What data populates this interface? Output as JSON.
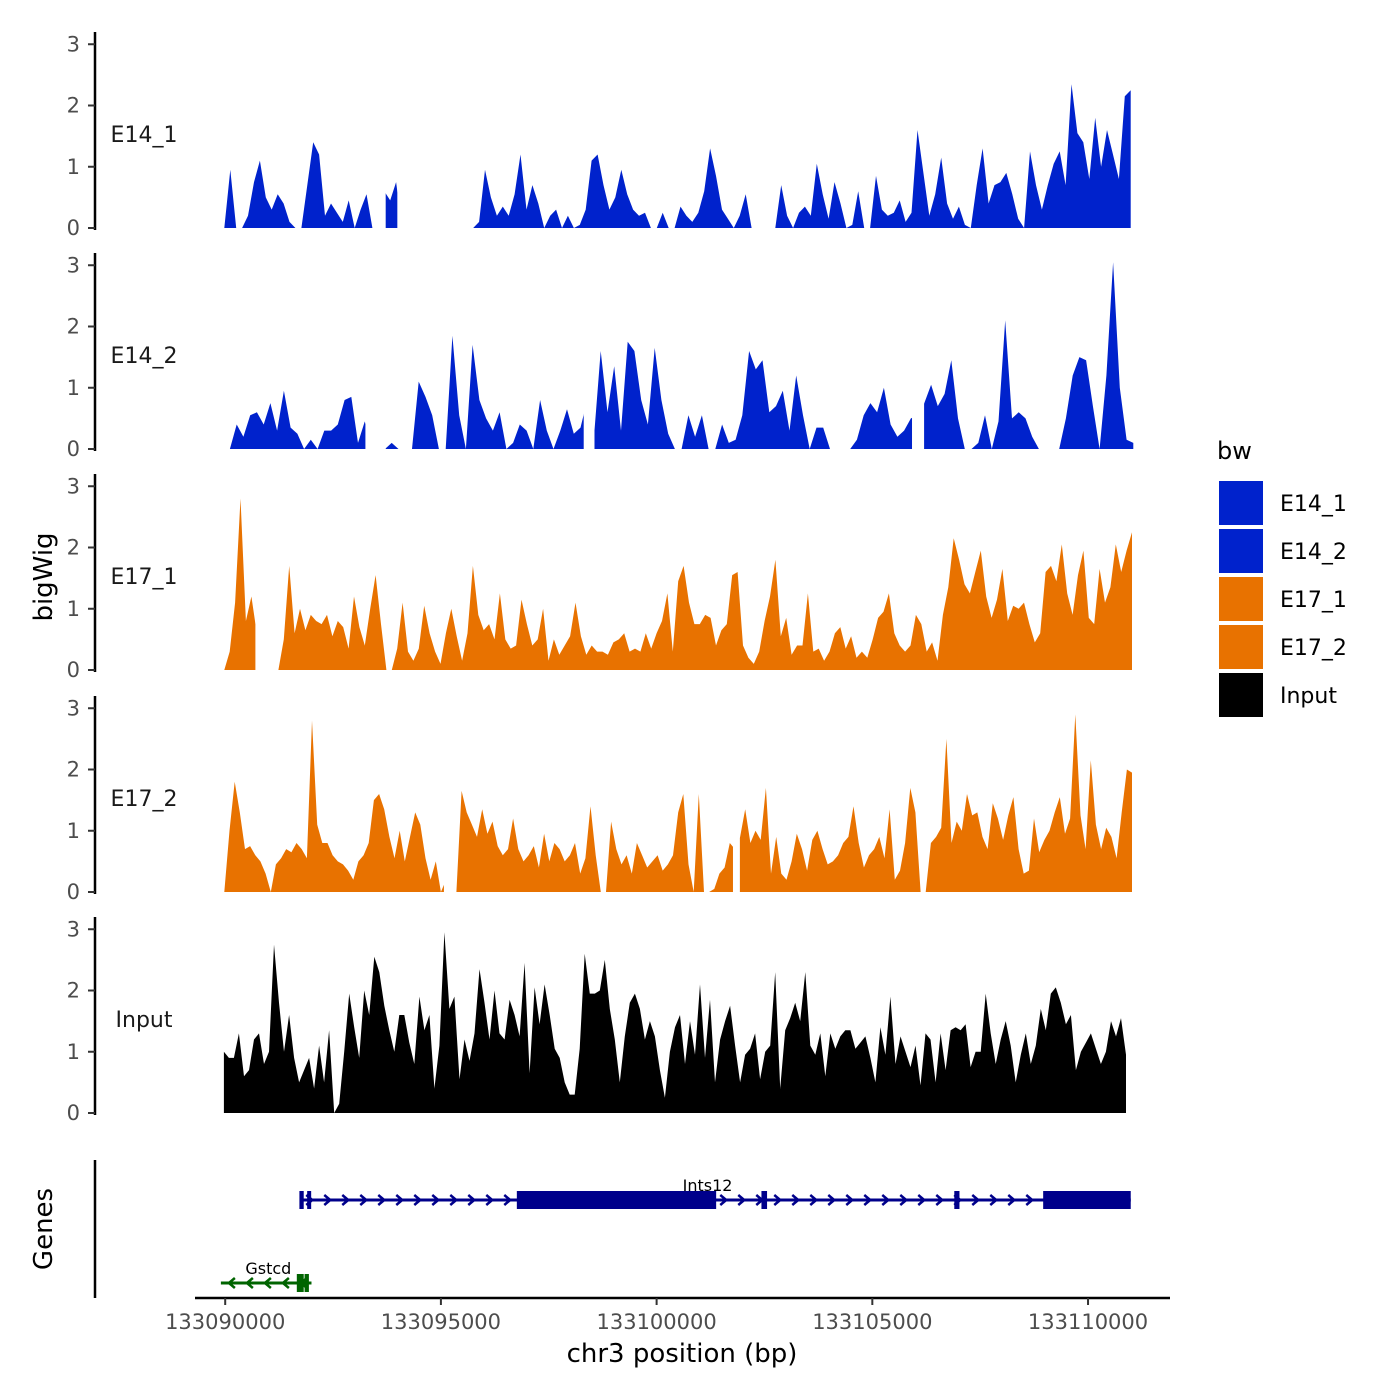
{
  "chart_data": {
    "type": "area",
    "title": "",
    "xlabel": "chr3 position (bp)",
    "ylabel": "bigWig",
    "genes_label": "Genes",
    "xlim": [
      133089300,
      133111900
    ],
    "ylim": [
      0,
      3.2
    ],
    "x_ticks": [
      133090000,
      133095000,
      133100000,
      133105000,
      133110000
    ],
    "x_tick_labels": [
      "133090000",
      "133095000",
      "133100000",
      "133105000",
      "133110000"
    ],
    "y_ticks": [
      0,
      1,
      2,
      3
    ],
    "y_tick_labels": [
      "0",
      "1",
      "2",
      "3"
    ],
    "legend": {
      "title": "bw",
      "position": "right",
      "entries": [
        {
          "label": "E14_1",
          "color": "#0022CC"
        },
        {
          "label": "E14_2",
          "color": "#0022CC"
        },
        {
          "label": "E17_1",
          "color": "#E87200"
        },
        {
          "label": "E17_2",
          "color": "#E87200"
        },
        {
          "label": "Input",
          "color": "#000000"
        }
      ]
    },
    "series": [
      {
        "name": "E14_1",
        "color": "#0022CC",
        "values": [
          0.0,
          0.95,
          0.0,
          0.0,
          0.2,
          0.75,
          1.1,
          0.5,
          0.3,
          0.55,
          0.4,
          0.1,
          0.0,
          0.0,
          0.7,
          1.4,
          1.2,
          0.2,
          0.4,
          0.25,
          0.1,
          0.45,
          0.0,
          0.3,
          0.55,
          0.0,
          0.0,
          0.6,
          0.45,
          0.75,
          0.0,
          0.0,
          0.0,
          0.0,
          0.2,
          0.5,
          0.0,
          0.0,
          0.0,
          0.0,
          0.0,
          0.0,
          0.0,
          0.1,
          0.95,
          0.5,
          0.2,
          0.35,
          0.2,
          0.55,
          1.2,
          0.3,
          0.7,
          0.4,
          0.0,
          0.2,
          0.3,
          0.0,
          0.2,
          0.0,
          0.05,
          0.3,
          1.1,
          1.2,
          0.7,
          0.3,
          0.5,
          0.95,
          0.55,
          0.3,
          0.2,
          0.25,
          0.0,
          0.0,
          0.25,
          0.0,
          0.0,
          0.35,
          0.2,
          0.1,
          0.25,
          0.6,
          1.3,
          0.85,
          0.3,
          0.15,
          0.0,
          0.2,
          0.55,
          0.0,
          0.0,
          0.0,
          0.0,
          0.0,
          0.7,
          0.2,
          0.0,
          0.25,
          0.35,
          0.2,
          1.05,
          0.55,
          0.15,
          0.75,
          0.4,
          0.0,
          0.05,
          0.6,
          0.0,
          0.0,
          0.85,
          0.3,
          0.2,
          0.25,
          0.45,
          0.1,
          0.25,
          1.6,
          0.9,
          0.2,
          0.55,
          1.15,
          0.4,
          0.15,
          0.35,
          0.05,
          0.0,
          0.7,
          1.3,
          0.4,
          0.7,
          0.75,
          0.9,
          0.55,
          0.15,
          0.0,
          1.25,
          0.7,
          0.3,
          0.7,
          1.05,
          1.25,
          0.7,
          2.35,
          1.55,
          1.4,
          0.8,
          1.8,
          1.0,
          1.6,
          1.2,
          0.8,
          2.15,
          2.25
        ]
      },
      {
        "name": "E14_2",
        "color": "#0022CC",
        "values": [
          0.0,
          0.4,
          0.2,
          0.55,
          0.6,
          0.4,
          0.75,
          0.3,
          0.95,
          0.35,
          0.25,
          0.0,
          0.15,
          0.0,
          0.3,
          0.3,
          0.4,
          0.8,
          0.85,
          0.1,
          0.45,
          0.0,
          0.3,
          0.0,
          0.1,
          0.0,
          0.0,
          0.0,
          1.1,
          0.85,
          0.55,
          0.0,
          0.0,
          1.85,
          0.55,
          0.0,
          1.7,
          0.8,
          0.5,
          0.3,
          0.6,
          0.0,
          0.1,
          0.4,
          0.3,
          0.0,
          0.8,
          0.3,
          0.0,
          0.3,
          0.65,
          0.25,
          0.35,
          0.8,
          0.2,
          1.6,
          0.6,
          1.35,
          0.3,
          1.75,
          1.6,
          0.8,
          0.4,
          1.65,
          0.8,
          0.25,
          0.0,
          0.0,
          0.55,
          0.2,
          0.55,
          0.0,
          0.0,
          0.4,
          0.1,
          0.15,
          0.55,
          1.6,
          1.3,
          1.45,
          0.6,
          0.7,
          0.95,
          0.3,
          1.2,
          0.55,
          0.0,
          0.35,
          0.35,
          0.0,
          0.0,
          0.0,
          0.0,
          0.15,
          0.55,
          0.75,
          0.6,
          1.0,
          0.4,
          0.2,
          0.3,
          0.5,
          0.55,
          0.75,
          1.05,
          0.7,
          0.9,
          1.45,
          0.5,
          0.0,
          0.0,
          0.1,
          0.55,
          0.0,
          0.45,
          2.1,
          0.5,
          0.6,
          0.5,
          0.2,
          0.0,
          0.0,
          0.0,
          0.0,
          0.5,
          1.2,
          1.5,
          1.45,
          0.7,
          0.0,
          1.2,
          3.05,
          1.0,
          0.15,
          0.1
        ]
      },
      {
        "name": "E17_1",
        "color": "#E87200",
        "values": [
          0.0,
          0.3,
          1.1,
          2.8,
          0.8,
          1.2,
          0.6,
          0.0,
          0.0,
          0.0,
          0.0,
          0.5,
          1.7,
          0.6,
          1.0,
          0.65,
          0.9,
          0.8,
          0.75,
          0.9,
          0.55,
          0.8,
          0.7,
          0.35,
          1.2,
          0.7,
          0.4,
          1.0,
          1.55,
          0.75,
          0.0,
          0.0,
          0.35,
          1.1,
          0.3,
          0.15,
          0.35,
          1.05,
          0.6,
          0.3,
          0.1,
          0.6,
          1.0,
          0.55,
          0.15,
          0.6,
          1.7,
          0.9,
          0.65,
          0.75,
          0.5,
          1.25,
          0.5,
          0.35,
          0.4,
          1.15,
          0.75,
          0.4,
          0.5,
          1.0,
          0.15,
          0.5,
          0.25,
          0.4,
          0.55,
          1.1,
          0.55,
          0.25,
          0.4,
          0.3,
          0.3,
          0.25,
          0.45,
          0.5,
          0.6,
          0.3,
          0.35,
          0.3,
          0.6,
          0.35,
          0.6,
          0.8,
          1.25,
          0.3,
          1.45,
          1.7,
          1.1,
          0.75,
          0.75,
          0.9,
          0.85,
          0.4,
          0.65,
          0.75,
          1.55,
          1.6,
          0.4,
          0.2,
          0.1,
          0.3,
          0.8,
          1.2,
          1.8,
          0.55,
          0.85,
          0.25,
          0.4,
          0.4,
          1.25,
          0.3,
          0.35,
          0.15,
          0.3,
          0.6,
          0.7,
          0.35,
          0.55,
          0.2,
          0.3,
          0.2,
          0.5,
          0.85,
          0.95,
          1.25,
          0.6,
          0.4,
          0.3,
          0.4,
          0.9,
          0.75,
          0.3,
          0.45,
          0.15,
          0.9,
          1.35,
          2.15,
          1.8,
          1.4,
          1.25,
          1.6,
          1.95,
          1.2,
          0.85,
          1.15,
          1.65,
          0.8,
          1.05,
          1.0,
          1.1,
          0.75,
          0.45,
          0.6,
          1.6,
          1.7,
          1.45,
          2.05,
          1.25,
          0.9,
          1.55,
          1.95,
          0.85,
          0.75,
          1.65,
          1.1,
          1.35,
          2.05,
          1.6,
          1.95,
          2.25
        ]
      },
      {
        "name": "E17_2",
        "color": "#E87200",
        "values": [
          0.0,
          1.0,
          1.8,
          1.3,
          0.7,
          0.75,
          0.6,
          0.5,
          0.3,
          0.0,
          0.45,
          0.55,
          0.7,
          0.65,
          0.8,
          0.7,
          0.55,
          2.8,
          1.1,
          0.8,
          0.8,
          0.6,
          0.5,
          0.45,
          0.35,
          0.2,
          0.5,
          0.6,
          0.8,
          1.5,
          1.6,
          1.35,
          0.9,
          0.55,
          1.0,
          0.5,
          0.9,
          1.3,
          1.1,
          0.55,
          0.2,
          0.5,
          0.0,
          0.2,
          0.0,
          0.0,
          1.65,
          1.3,
          1.1,
          0.9,
          1.35,
          0.95,
          1.15,
          0.75,
          0.6,
          0.7,
          1.2,
          0.7,
          0.5,
          0.6,
          0.75,
          0.4,
          0.95,
          0.5,
          0.8,
          0.7,
          0.5,
          0.6,
          0.8,
          0.3,
          0.55,
          1.4,
          0.6,
          0.0,
          0.0,
          1.15,
          0.7,
          0.45,
          0.6,
          0.3,
          0.8,
          0.6,
          0.4,
          0.5,
          0.6,
          0.35,
          0.45,
          0.6,
          1.3,
          1.6,
          0.45,
          0.0,
          1.6,
          0.0,
          0.0,
          0.05,
          0.3,
          0.4,
          0.8,
          0.7,
          0.9,
          1.35,
          0.8,
          1.0,
          0.85,
          1.7,
          0.3,
          0.9,
          0.3,
          0.2,
          0.5,
          0.95,
          0.7,
          0.35,
          0.85,
          1.0,
          0.7,
          0.45,
          0.5,
          0.6,
          0.8,
          0.9,
          1.4,
          0.8,
          0.4,
          0.6,
          0.7,
          0.9,
          0.55,
          1.35,
          0.2,
          0.35,
          0.8,
          1.7,
          1.3,
          0.0,
          0.0,
          0.8,
          0.9,
          1.05,
          2.5,
          0.8,
          1.15,
          1.0,
          1.6,
          1.25,
          1.3,
          0.9,
          0.7,
          1.45,
          1.2,
          0.85,
          1.25,
          1.55,
          0.7,
          0.3,
          0.35,
          1.2,
          0.65,
          0.85,
          1.0,
          1.3,
          1.55,
          0.95,
          1.2,
          2.9,
          1.25,
          0.7,
          2.15,
          1.1,
          0.7,
          1.05,
          0.9,
          0.55,
          1.3,
          2.0,
          1.95
        ]
      },
      {
        "name": "Input",
        "color": "#000000",
        "values": [
          1.0,
          0.9,
          0.9,
          1.3,
          0.6,
          0.7,
          1.2,
          1.3,
          0.8,
          1.0,
          2.75,
          1.8,
          1.0,
          1.6,
          0.9,
          0.5,
          0.7,
          0.9,
          0.4,
          1.1,
          0.5,
          1.35,
          0.0,
          0.15,
          1.0,
          1.95,
          1.4,
          0.9,
          2.0,
          1.6,
          2.55,
          2.3,
          1.75,
          1.35,
          1.0,
          1.6,
          1.6,
          1.15,
          0.8,
          1.9,
          1.35,
          1.6,
          0.4,
          1.1,
          2.95,
          1.7,
          1.9,
          0.55,
          1.2,
          0.85,
          1.3,
          2.35,
          1.8,
          1.2,
          2.0,
          1.3,
          1.2,
          1.85,
          1.6,
          1.25,
          2.45,
          0.65,
          2.05,
          1.45,
          2.1,
          1.6,
          1.05,
          0.9,
          0.5,
          0.3,
          0.3,
          1.05,
          2.6,
          1.95,
          1.95,
          2.0,
          2.5,
          1.7,
          1.2,
          0.5,
          1.25,
          1.8,
          1.95,
          1.7,
          1.2,
          1.5,
          1.25,
          0.7,
          0.25,
          1.0,
          1.4,
          1.6,
          0.8,
          1.5,
          0.95,
          2.1,
          0.9,
          1.85,
          0.5,
          1.2,
          1.5,
          1.75,
          1.1,
          0.5,
          0.95,
          1.05,
          1.3,
          0.55,
          1.0,
          1.1,
          2.3,
          0.4,
          1.35,
          1.55,
          1.8,
          1.5,
          2.3,
          1.1,
          0.95,
          1.3,
          0.6,
          1.3,
          1.05,
          1.25,
          1.35,
          1.35,
          1.05,
          1.15,
          1.25,
          0.9,
          0.5,
          1.4,
          0.95,
          1.9,
          0.8,
          1.25,
          1.0,
          0.75,
          1.1,
          0.45,
          1.3,
          1.2,
          0.5,
          1.3,
          0.7,
          1.35,
          1.4,
          1.35,
          1.45,
          0.75,
          1.0,
          1.0,
          1.95,
          1.3,
          0.8,
          1.2,
          1.5,
          1.1,
          0.5,
          0.95,
          1.3,
          0.8,
          1.1,
          1.7,
          1.35,
          1.95,
          2.05,
          1.8,
          1.45,
          1.6,
          0.7,
          1.0,
          1.15,
          1.3,
          1.05,
          0.8,
          1.0,
          1.5,
          1.25,
          1.55,
          0.95
        ]
      }
    ],
    "series_x_ranges": [
      [
        133089980,
        133110990
      ],
      [
        133090110,
        133111050
      ],
      [
        133089980,
        133111020
      ],
      [
        133089980,
        133111020
      ],
      [
        133089970,
        133110880
      ]
    ],
    "series_gaps": [
      [
        [
          133093460,
          133093720
        ],
        [
          133093990,
          133094960
        ]
      ],
      [
        [
          133093250,
          133093720
        ],
        [
          133098310,
          133098560
        ],
        [
          133105920,
          133106200
        ]
      ],
      [
        [
          133090700,
          133090930
        ]
      ],
      [
        [
          133095070,
          133095260
        ],
        [
          133101770,
          133101930
        ]
      ],
      []
    ],
    "genes": [
      {
        "name": "Ints12",
        "strand": "+",
        "color": "#00008B",
        "start": 133091740,
        "end": 133110990,
        "exons": [
          [
            133091720,
            133091820
          ],
          [
            133091900,
            133091990
          ],
          [
            133096760,
            133101380
          ],
          [
            133102430,
            133102560
          ],
          [
            133106900,
            133107020
          ],
          [
            133108960,
            133110990
          ]
        ]
      },
      {
        "name": "Gstcd",
        "strand": "-",
        "color": "#006400",
        "start": 133089900,
        "end": 133092000,
        "exons": [
          [
            133091660,
            133091820
          ],
          [
            133091840,
            133091940
          ]
        ]
      }
    ]
  }
}
